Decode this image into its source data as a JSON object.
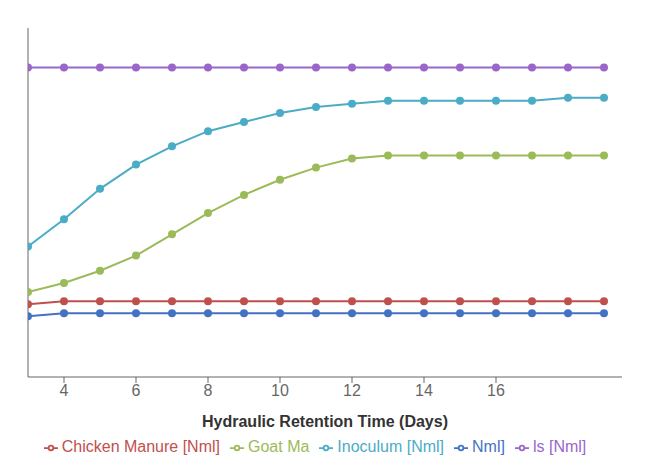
{
  "chart_data": {
    "type": "line",
    "xlabel": "Hydraulic Retention Time (Days)",
    "x": [
      3,
      4,
      5,
      6,
      7,
      8,
      9,
      10,
      11,
      12,
      13,
      14,
      15,
      16,
      17,
      18,
      19
    ],
    "xlim": [
      3.0,
      19.5
    ],
    "xticks": [
      4,
      6,
      8,
      10,
      12,
      14,
      16
    ],
    "ylim": [
      -0.05,
      1.1
    ],
    "tick_labels": "x",
    "marker": "o",
    "legend": "bottom",
    "grid": false,
    "series": [
      {
        "name": "ls [Nml]",
        "color": "#9966cc",
        "values": [
          0.97,
          0.97,
          0.97,
          0.97,
          0.97,
          0.97,
          0.97,
          0.97,
          0.97,
          0.97,
          0.97,
          0.97,
          0.97,
          0.97,
          0.97,
          0.97,
          0.97
        ]
      },
      {
        "name": "Inoculum [Nml]",
        "color": "#4bacc6",
        "values": [
          0.38,
          0.47,
          0.57,
          0.65,
          0.71,
          0.76,
          0.79,
          0.82,
          0.84,
          0.85,
          0.86,
          0.86,
          0.86,
          0.86,
          0.86,
          0.87,
          0.87
        ]
      },
      {
        "name": "Goat Ma",
        "color": "#9bbb59",
        "values": [
          0.23,
          0.26,
          0.3,
          0.35,
          0.42,
          0.49,
          0.55,
          0.6,
          0.64,
          0.67,
          0.68,
          0.68,
          0.68,
          0.68,
          0.68,
          0.68,
          0.68
        ]
      },
      {
        "name": "Chicken Manure [Nml]",
        "color": "#c0504d",
        "values": [
          0.19,
          0.2,
          0.2,
          0.2,
          0.2,
          0.2,
          0.2,
          0.2,
          0.2,
          0.2,
          0.2,
          0.2,
          0.2,
          0.2,
          0.2,
          0.2,
          0.2
        ]
      },
      {
        "name": "Nml]",
        "color": "#4472c4",
        "values": [
          0.15,
          0.16,
          0.16,
          0.16,
          0.16,
          0.16,
          0.16,
          0.16,
          0.16,
          0.16,
          0.16,
          0.16,
          0.16,
          0.16,
          0.16,
          0.16,
          0.16
        ]
      }
    ]
  }
}
